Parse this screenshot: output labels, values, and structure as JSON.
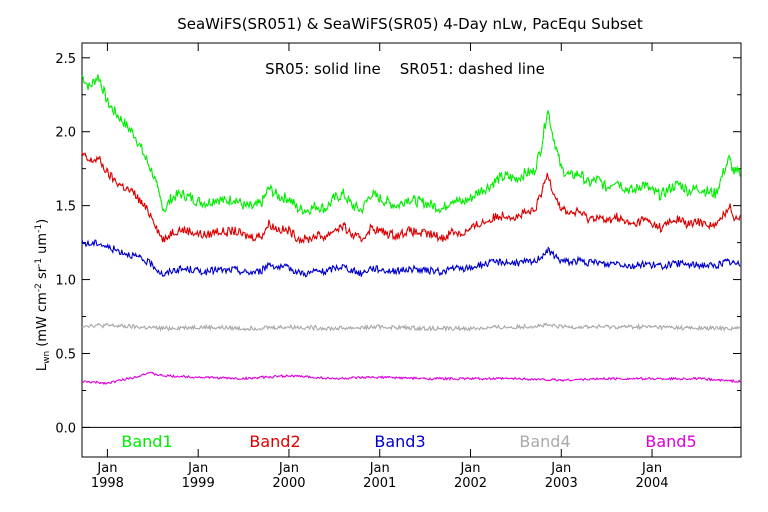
{
  "chart_data": {
    "type": "line",
    "title": "SeaWiFS(SR051) & SeaWiFS(SR05) 4-Day nLw, PacEqu Subset",
    "annotation": "SR05: solid line    SR051: dashed line",
    "ylabel": "L_wn (mW cm^-2 sr^-1 um^-1)",
    "ylabel_parts": {
      "base": "L",
      "sub": "wn",
      "pre": " (mW cm",
      "e1": "-2",
      "mid1": " sr",
      "e2": "-1",
      "mid2": " um",
      "e3": "-1",
      "post": ")"
    },
    "ylim": [
      -0.2,
      2.6
    ],
    "xlim": [
      1997.72,
      2004.98
    ],
    "yticks": [
      "0.0",
      "0.5",
      "1.0",
      "1.5",
      "2.0",
      "2.5"
    ],
    "ytick_values": [
      0.0,
      0.5,
      1.0,
      1.5,
      2.0,
      2.5
    ],
    "xticks": [
      {
        "value": 1998.0,
        "month": "Jan",
        "year": "1998"
      },
      {
        "value": 1999.0,
        "month": "Jan",
        "year": "1999"
      },
      {
        "value": 2000.0,
        "month": "Jan",
        "year": "2000"
      },
      {
        "value": 2001.0,
        "month": "Jan",
        "year": "2001"
      },
      {
        "value": 2002.0,
        "month": "Jan",
        "year": "2002"
      },
      {
        "value": 2003.0,
        "month": "Jan",
        "year": "2003"
      },
      {
        "value": 2004.0,
        "month": "Jan",
        "year": "2004"
      }
    ],
    "grid": false,
    "legend_position": "bottom",
    "series": [
      {
        "name": "Band1",
        "color": "#00ee00",
        "points": [
          [
            1997.72,
            2.38
          ],
          [
            1997.8,
            2.3
          ],
          [
            1997.9,
            2.38
          ],
          [
            1998.0,
            2.2
          ],
          [
            1998.1,
            2.12
          ],
          [
            1998.2,
            2.05
          ],
          [
            1998.3,
            1.98
          ],
          [
            1998.4,
            1.85
          ],
          [
            1998.5,
            1.72
          ],
          [
            1998.58,
            1.55
          ],
          [
            1998.63,
            1.47
          ],
          [
            1998.7,
            1.55
          ],
          [
            1998.8,
            1.58
          ],
          [
            1998.9,
            1.56
          ],
          [
            1999.0,
            1.53
          ],
          [
            1999.1,
            1.52
          ],
          [
            1999.2,
            1.55
          ],
          [
            1999.3,
            1.53
          ],
          [
            1999.4,
            1.55
          ],
          [
            1999.5,
            1.5
          ],
          [
            1999.6,
            1.49
          ],
          [
            1999.7,
            1.52
          ],
          [
            1999.78,
            1.62
          ],
          [
            1999.85,
            1.58
          ],
          [
            1999.9,
            1.56
          ],
          [
            2000.0,
            1.55
          ],
          [
            2000.1,
            1.48
          ],
          [
            2000.2,
            1.47
          ],
          [
            2000.3,
            1.5
          ],
          [
            2000.4,
            1.48
          ],
          [
            2000.5,
            1.55
          ],
          [
            2000.6,
            1.58
          ],
          [
            2000.7,
            1.5
          ],
          [
            2000.8,
            1.47
          ],
          [
            2000.9,
            1.58
          ],
          [
            2001.0,
            1.55
          ],
          [
            2001.1,
            1.52
          ],
          [
            2001.2,
            1.5
          ],
          [
            2001.3,
            1.55
          ],
          [
            2001.4,
            1.53
          ],
          [
            2001.5,
            1.52
          ],
          [
            2001.6,
            1.5
          ],
          [
            2001.7,
            1.48
          ],
          [
            2001.8,
            1.55
          ],
          [
            2001.9,
            1.52
          ],
          [
            2002.0,
            1.55
          ],
          [
            2002.1,
            1.6
          ],
          [
            2002.2,
            1.63
          ],
          [
            2002.3,
            1.68
          ],
          [
            2002.4,
            1.7
          ],
          [
            2002.5,
            1.68
          ],
          [
            2002.6,
            1.72
          ],
          [
            2002.7,
            1.73
          ],
          [
            2002.78,
            1.9
          ],
          [
            2002.85,
            2.16
          ],
          [
            2002.9,
            2.0
          ],
          [
            2003.0,
            1.75
          ],
          [
            2003.1,
            1.7
          ],
          [
            2003.2,
            1.72
          ],
          [
            2003.3,
            1.65
          ],
          [
            2003.4,
            1.68
          ],
          [
            2003.5,
            1.62
          ],
          [
            2003.6,
            1.68
          ],
          [
            2003.7,
            1.62
          ],
          [
            2003.8,
            1.6
          ],
          [
            2003.9,
            1.65
          ],
          [
            2004.0,
            1.6
          ],
          [
            2004.1,
            1.57
          ],
          [
            2004.2,
            1.62
          ],
          [
            2004.3,
            1.65
          ],
          [
            2004.4,
            1.6
          ],
          [
            2004.5,
            1.62
          ],
          [
            2004.6,
            1.6
          ],
          [
            2004.7,
            1.58
          ],
          [
            2004.8,
            1.75
          ],
          [
            2004.85,
            1.82
          ],
          [
            2004.9,
            1.73
          ],
          [
            2004.98,
            1.72
          ]
        ]
      },
      {
        "name": "Band2",
        "color": "#dd0000",
        "points": [
          [
            1997.72,
            1.85
          ],
          [
            1997.8,
            1.8
          ],
          [
            1997.9,
            1.82
          ],
          [
            1998.0,
            1.72
          ],
          [
            1998.1,
            1.66
          ],
          [
            1998.2,
            1.62
          ],
          [
            1998.3,
            1.58
          ],
          [
            1998.4,
            1.5
          ],
          [
            1998.5,
            1.42
          ],
          [
            1998.58,
            1.3
          ],
          [
            1998.63,
            1.26
          ],
          [
            1998.7,
            1.32
          ],
          [
            1998.8,
            1.34
          ],
          [
            1998.9,
            1.33
          ],
          [
            1999.0,
            1.31
          ],
          [
            1999.1,
            1.3
          ],
          [
            1999.2,
            1.33
          ],
          [
            1999.3,
            1.32
          ],
          [
            1999.4,
            1.33
          ],
          [
            1999.5,
            1.3
          ],
          [
            1999.6,
            1.29
          ],
          [
            1999.7,
            1.3
          ],
          [
            1999.78,
            1.38
          ],
          [
            1999.85,
            1.35
          ],
          [
            1999.9,
            1.34
          ],
          [
            2000.0,
            1.33
          ],
          [
            2000.1,
            1.28
          ],
          [
            2000.2,
            1.27
          ],
          [
            2000.3,
            1.3
          ],
          [
            2000.4,
            1.29
          ],
          [
            2000.5,
            1.34
          ],
          [
            2000.6,
            1.36
          ],
          [
            2000.7,
            1.3
          ],
          [
            2000.8,
            1.27
          ],
          [
            2000.9,
            1.35
          ],
          [
            2001.0,
            1.33
          ],
          [
            2001.1,
            1.31
          ],
          [
            2001.2,
            1.3
          ],
          [
            2001.3,
            1.33
          ],
          [
            2001.4,
            1.32
          ],
          [
            2001.5,
            1.31
          ],
          [
            2001.6,
            1.3
          ],
          [
            2001.7,
            1.28
          ],
          [
            2001.8,
            1.33
          ],
          [
            2001.9,
            1.31
          ],
          [
            2002.0,
            1.34
          ],
          [
            2002.1,
            1.38
          ],
          [
            2002.2,
            1.4
          ],
          [
            2002.3,
            1.43
          ],
          [
            2002.4,
            1.44
          ],
          [
            2002.5,
            1.42
          ],
          [
            2002.6,
            1.45
          ],
          [
            2002.7,
            1.46
          ],
          [
            2002.78,
            1.58
          ],
          [
            2002.85,
            1.72
          ],
          [
            2002.9,
            1.62
          ],
          [
            2003.0,
            1.48
          ],
          [
            2003.1,
            1.45
          ],
          [
            2003.2,
            1.46
          ],
          [
            2003.3,
            1.41
          ],
          [
            2003.4,
            1.43
          ],
          [
            2003.5,
            1.39
          ],
          [
            2003.6,
            1.43
          ],
          [
            2003.7,
            1.39
          ],
          [
            2003.8,
            1.37
          ],
          [
            2003.9,
            1.41
          ],
          [
            2004.0,
            1.38
          ],
          [
            2004.1,
            1.35
          ],
          [
            2004.2,
            1.39
          ],
          [
            2004.3,
            1.41
          ],
          [
            2004.4,
            1.37
          ],
          [
            2004.5,
            1.39
          ],
          [
            2004.6,
            1.38
          ],
          [
            2004.7,
            1.36
          ],
          [
            2004.8,
            1.45
          ],
          [
            2004.85,
            1.5
          ],
          [
            2004.9,
            1.43
          ],
          [
            2004.98,
            1.42
          ]
        ]
      },
      {
        "name": "Band3",
        "color": "#0000cc",
        "points": [
          [
            1997.72,
            1.25
          ],
          [
            1997.8,
            1.24
          ],
          [
            1997.9,
            1.25
          ],
          [
            1998.0,
            1.22
          ],
          [
            1998.1,
            1.2
          ],
          [
            1998.2,
            1.18
          ],
          [
            1998.3,
            1.16
          ],
          [
            1998.4,
            1.13
          ],
          [
            1998.5,
            1.1
          ],
          [
            1998.58,
            1.05
          ],
          [
            1998.63,
            1.03
          ],
          [
            1998.7,
            1.06
          ],
          [
            1998.8,
            1.07
          ],
          [
            1998.9,
            1.07
          ],
          [
            1999.0,
            1.06
          ],
          [
            1999.1,
            1.05
          ],
          [
            1999.2,
            1.07
          ],
          [
            1999.3,
            1.06
          ],
          [
            1999.4,
            1.07
          ],
          [
            1999.5,
            1.05
          ],
          [
            1999.6,
            1.05
          ],
          [
            1999.7,
            1.06
          ],
          [
            1999.78,
            1.11
          ],
          [
            1999.85,
            1.09
          ],
          [
            1999.9,
            1.08
          ],
          [
            2000.0,
            1.08
          ],
          [
            2000.1,
            1.05
          ],
          [
            2000.2,
            1.04
          ],
          [
            2000.3,
            1.06
          ],
          [
            2000.4,
            1.05
          ],
          [
            2000.5,
            1.08
          ],
          [
            2000.6,
            1.09
          ],
          [
            2000.7,
            1.06
          ],
          [
            2000.8,
            1.04
          ],
          [
            2000.9,
            1.08
          ],
          [
            2001.0,
            1.07
          ],
          [
            2001.1,
            1.06
          ],
          [
            2001.2,
            1.06
          ],
          [
            2001.3,
            1.07
          ],
          [
            2001.4,
            1.07
          ],
          [
            2001.5,
            1.06
          ],
          [
            2001.6,
            1.06
          ],
          [
            2001.7,
            1.05
          ],
          [
            2001.8,
            1.08
          ],
          [
            2001.9,
            1.07
          ],
          [
            2002.0,
            1.08
          ],
          [
            2002.1,
            1.1
          ],
          [
            2002.2,
            1.11
          ],
          [
            2002.3,
            1.12
          ],
          [
            2002.4,
            1.12
          ],
          [
            2002.5,
            1.11
          ],
          [
            2002.6,
            1.12
          ],
          [
            2002.7,
            1.12
          ],
          [
            2002.78,
            1.16
          ],
          [
            2002.85,
            1.2
          ],
          [
            2002.9,
            1.17
          ],
          [
            2003.0,
            1.13
          ],
          [
            2003.1,
            1.12
          ],
          [
            2003.2,
            1.13
          ],
          [
            2003.3,
            1.11
          ],
          [
            2003.4,
            1.12
          ],
          [
            2003.5,
            1.1
          ],
          [
            2003.6,
            1.12
          ],
          [
            2003.7,
            1.1
          ],
          [
            2003.8,
            1.09
          ],
          [
            2003.9,
            1.11
          ],
          [
            2004.0,
            1.1
          ],
          [
            2004.1,
            1.09
          ],
          [
            2004.2,
            1.1
          ],
          [
            2004.3,
            1.11
          ],
          [
            2004.4,
            1.1
          ],
          [
            2004.5,
            1.1
          ],
          [
            2004.6,
            1.1
          ],
          [
            2004.7,
            1.09
          ],
          [
            2004.8,
            1.12
          ],
          [
            2004.85,
            1.12
          ],
          [
            2004.9,
            1.11
          ],
          [
            2004.98,
            1.1
          ]
        ]
      },
      {
        "name": "Band4",
        "color": "#aaaaaa",
        "points": [
          [
            1997.72,
            0.69
          ],
          [
            1998.0,
            0.69
          ],
          [
            1998.3,
            0.68
          ],
          [
            1998.6,
            0.67
          ],
          [
            1999.0,
            0.68
          ],
          [
            1999.5,
            0.67
          ],
          [
            2000.0,
            0.68
          ],
          [
            2000.5,
            0.67
          ],
          [
            2001.0,
            0.68
          ],
          [
            2001.5,
            0.67
          ],
          [
            2002.0,
            0.67
          ],
          [
            2002.5,
            0.68
          ],
          [
            2002.85,
            0.69
          ],
          [
            2003.0,
            0.68
          ],
          [
            2003.5,
            0.68
          ],
          [
            2004.0,
            0.68
          ],
          [
            2004.5,
            0.67
          ],
          [
            2004.98,
            0.67
          ]
        ]
      },
      {
        "name": "Band5",
        "color": "#dd00dd",
        "points": [
          [
            1997.72,
            0.31
          ],
          [
            1998.0,
            0.3
          ],
          [
            1998.3,
            0.34
          ],
          [
            1998.45,
            0.37
          ],
          [
            1998.6,
            0.35
          ],
          [
            1999.0,
            0.34
          ],
          [
            1999.5,
            0.33
          ],
          [
            2000.0,
            0.35
          ],
          [
            2000.5,
            0.33
          ],
          [
            2001.0,
            0.34
          ],
          [
            2001.5,
            0.33
          ],
          [
            2002.0,
            0.33
          ],
          [
            2002.5,
            0.33
          ],
          [
            2003.0,
            0.32
          ],
          [
            2003.5,
            0.33
          ],
          [
            2004.0,
            0.33
          ],
          [
            2004.5,
            0.33
          ],
          [
            2004.98,
            0.31
          ]
        ]
      }
    ]
  }
}
